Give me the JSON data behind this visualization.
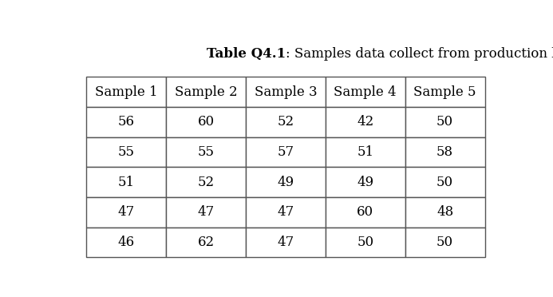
{
  "title_bold": "Table Q4.1",
  "title_normal": ": Samples data collect from production line.",
  "headers": [
    "Sample 1",
    "Sample 2",
    "Sample 3",
    "Sample 4",
    "Sample 5"
  ],
  "rows": [
    [
      56,
      60,
      52,
      42,
      50
    ],
    [
      55,
      55,
      57,
      51,
      58
    ],
    [
      51,
      52,
      49,
      49,
      50
    ],
    [
      47,
      47,
      47,
      60,
      48
    ],
    [
      46,
      62,
      47,
      50,
      50
    ]
  ],
  "background_color": "#ffffff",
  "table_edge_color": "#555555",
  "text_color": "#000000",
  "header_fontsize": 12,
  "cell_fontsize": 12,
  "title_fontsize": 12
}
